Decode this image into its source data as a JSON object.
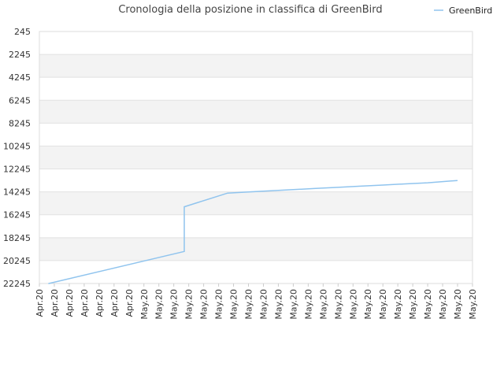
{
  "chart_data": {
    "type": "line",
    "title": "Cronologia della posizione in classifica di GreenBird",
    "xlabel": "",
    "ylabel": "",
    "y_reversed": true,
    "ylim": [
      22245,
      245
    ],
    "y_ticks": [
      245,
      2245,
      4245,
      6245,
      8245,
      10245,
      12245,
      14245,
      16245,
      18245,
      20245,
      22245
    ],
    "y_tick_labels": [
      "245",
      "2245",
      "4245",
      "6245",
      "8245",
      "10245",
      "12245",
      "14245",
      "16245",
      "18245",
      "20245",
      "22245"
    ],
    "x_tick_labels": [
      "Apr.20",
      "Apr.20",
      "Apr.20",
      "Apr.20",
      "Apr.20",
      "Apr.20",
      "Apr.20",
      "May.20",
      "May.20",
      "May.20",
      "May.20",
      "May.20",
      "May.20",
      "May.20",
      "May.20",
      "May.20",
      "May.20",
      "May.20",
      "May.20",
      "May.20",
      "May.20",
      "May.20",
      "May.20",
      "May.20",
      "May.20",
      "May.20",
      "May.20",
      "May.20",
      "May.20",
      "May.20"
    ],
    "grid": true,
    "legend_position": "top-right",
    "series": [
      {
        "name": "GreenBird",
        "color": "#90c4ee",
        "x_index": [
          0.6,
          9.7,
          9.7,
          12.6,
          14.0,
          15.5,
          17.0,
          18.5,
          20.0,
          21.5,
          23.0,
          24.5,
          26.0,
          27.5,
          28.0
        ],
        "values": [
          22250,
          19450,
          15550,
          14350,
          14250,
          14150,
          14050,
          13950,
          13850,
          13750,
          13650,
          13550,
          13450,
          13300,
          13250
        ]
      }
    ]
  }
}
